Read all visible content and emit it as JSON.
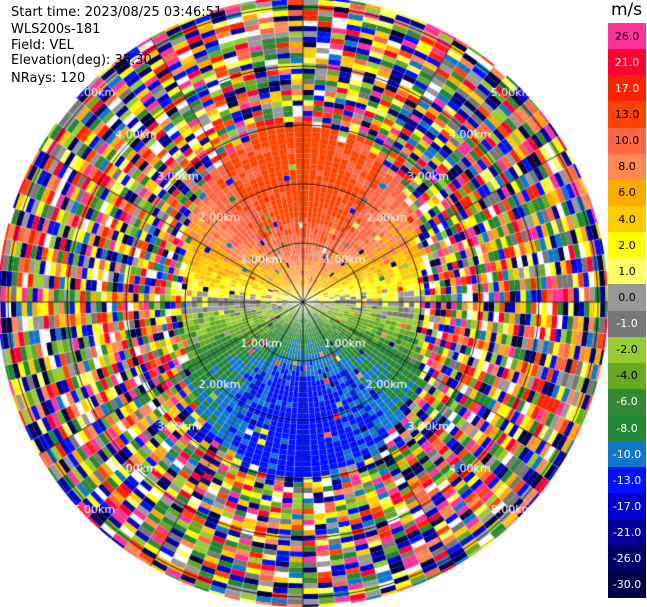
{
  "info": {
    "start_time": "Start time: 2023/08/25 03:46:51",
    "site": "WLS200s-181",
    "field": "Field: VEL",
    "elevation": "Elevation(deg): 35.30",
    "nrays": "NRays: 120"
  },
  "chart_data": {
    "type": "heatmap",
    "projection": "polar-ppi",
    "title": "",
    "field": "VEL",
    "units": "m/s",
    "nrays": 120,
    "range_rings_km": [
      1.0,
      2.0,
      3.0,
      4.0,
      5.0,
      6.0
    ],
    "ring_labels": [
      "1.00km",
      "2.00km",
      "3.00km",
      "4.00km",
      "5.00km",
      "6.00km"
    ],
    "spoke_angles_deg": [
      0,
      30,
      60,
      90,
      120,
      150,
      180,
      210,
      240,
      270,
      300,
      330
    ],
    "pattern_summary": {
      "north_sector": "positive velocities 2 to 17 m/s (receding)",
      "south_sector": "negative velocities -2 to -10 m/s (approaching)",
      "east_west_axis": "near 0 m/s",
      "beyond_3km": "noise spanning full color scale"
    },
    "colorbar": {
      "unit_label": "m/s",
      "ticks": [
        "26.0",
        "21.0",
        "17.0",
        "13.0",
        "10.0",
        "8.0",
        "6.0",
        "4.0",
        "2.0",
        "1.0",
        "0.0",
        "-1.0",
        "-2.0",
        "-4.0",
        "-6.0",
        "-8.0",
        "-10.0",
        "-13.0",
        "-17.0",
        "-21.0",
        "-26.0",
        "-30.0"
      ],
      "colors": [
        "#ff3399",
        "#ff0033",
        "#ff2200",
        "#ff4400",
        "#ff6644",
        "#ff8855",
        "#ffaa00",
        "#ffcc00",
        "#ffff00",
        "#ffff66",
        "#999999",
        "#777777",
        "#99cc33",
        "#66aa22",
        "#338833",
        "#228833",
        "#1177cc",
        "#0011ff",
        "#0000cc",
        "#000099",
        "#000066",
        "#000044"
      ]
    }
  }
}
